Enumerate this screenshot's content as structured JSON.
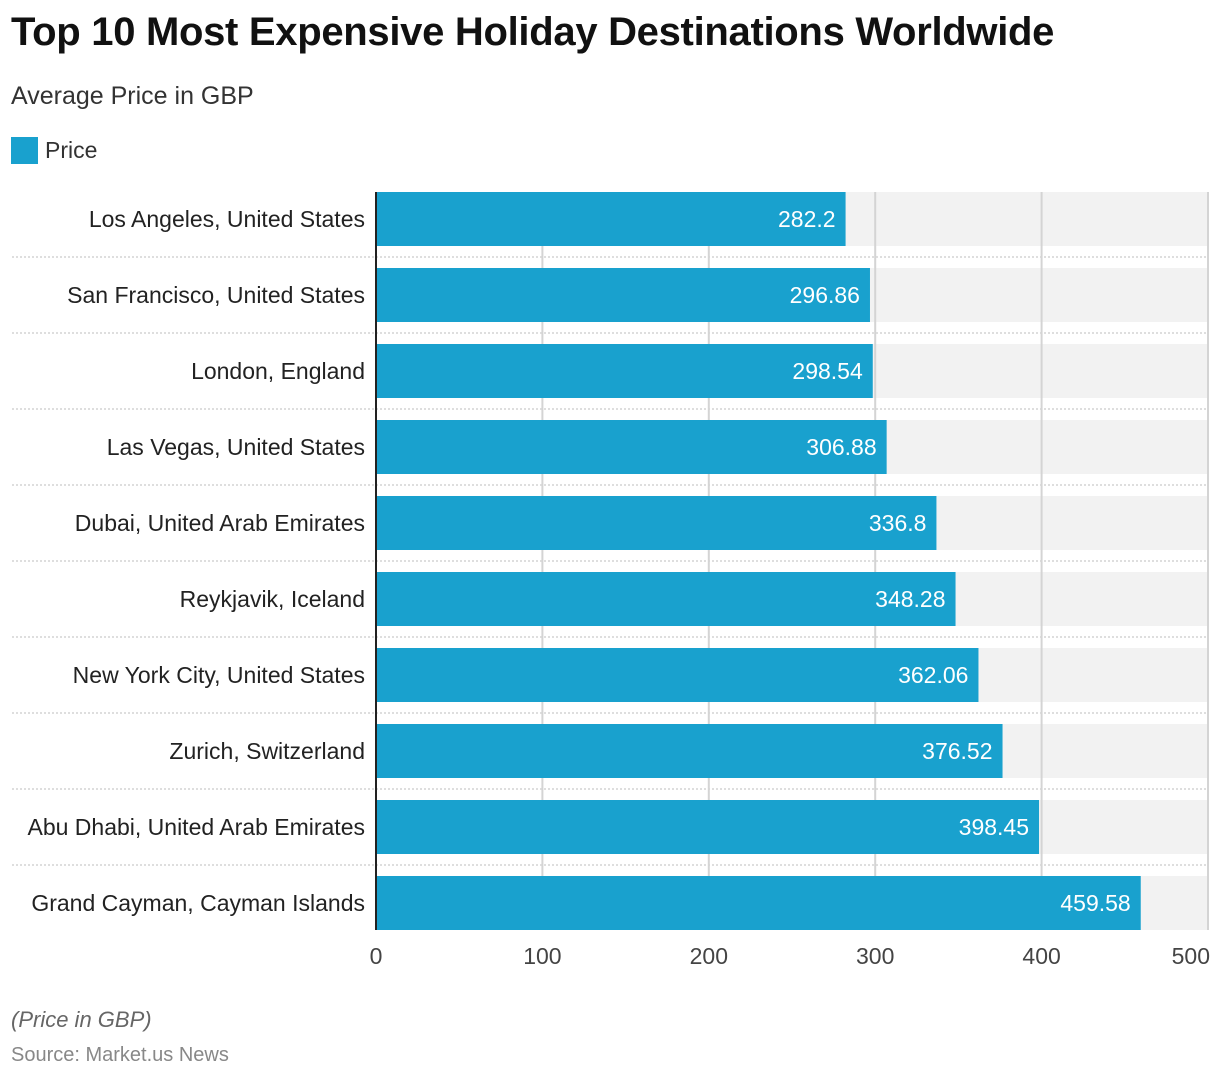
{
  "chart_data": {
    "type": "bar",
    "orientation": "horizontal",
    "title": "Top 10 Most Expensive Holiday Destinations Worldwide",
    "subtitle": "Average Price in GBP",
    "categories": [
      "Los Angeles, United States",
      "San Francisco, United States",
      "London, England",
      "Las Vegas, United States",
      "Dubai, United Arab Emirates",
      "Reykjavik, Iceland",
      "New York City, United States",
      "Zurich, Switzerland",
      "Abu Dhabi, United Arab Emirates",
      "Grand Cayman, Cayman Islands"
    ],
    "series": [
      {
        "name": "Price",
        "color": "#19a1ce",
        "values": [
          282.2,
          296.86,
          298.54,
          306.88,
          336.8,
          348.28,
          362.06,
          376.52,
          398.45,
          459.58
        ]
      }
    ],
    "data_labels": [
      "282.2",
      "296.86",
      "298.54",
      "306.88",
      "336.8",
      "348.28",
      "362.06",
      "376.52",
      "398.45",
      "459.58"
    ],
    "xlim": [
      0,
      500
    ],
    "xticks": [
      0,
      100,
      200,
      300,
      400,
      500
    ],
    "xtick_labels": [
      "0",
      "100",
      "200",
      "300",
      "400",
      "500"
    ],
    "grid": true,
    "legend_position": "top-left",
    "note": "(Price in GBP)",
    "source": "Source: Market.us News"
  },
  "colors": {
    "bar": "#19a1ce",
    "track": "#f2f2f2",
    "grid": "#d4d4d4",
    "axis": "#222222"
  }
}
